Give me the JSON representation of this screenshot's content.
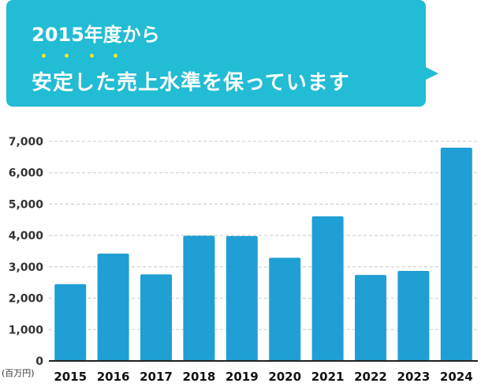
{
  "headline": {
    "line1": "2015年度から",
    "line2": "安定した売上水準を保っています",
    "emphasis_dot_color": "#f2e533",
    "bubble_color": "#22bcd4"
  },
  "chart_data": {
    "type": "bar",
    "categories": [
      "2015",
      "2016",
      "2017",
      "2018",
      "2019",
      "2020",
      "2021",
      "2022",
      "2023",
      "2024"
    ],
    "values": [
      2450,
      3420,
      2760,
      3990,
      3980,
      3290,
      4610,
      2740,
      2870,
      6800
    ],
    "ylim": [
      0,
      7000
    ],
    "yticks": [
      {
        "v": 0,
        "label": "0"
      },
      {
        "v": 1000,
        "label": "1,000"
      },
      {
        "v": 2000,
        "label": "2,000"
      },
      {
        "v": 3000,
        "label": "3,000"
      },
      {
        "v": 4000,
        "label": "4,000"
      },
      {
        "v": 5000,
        "label": "5,000"
      },
      {
        "v": 6000,
        "label": "6,000"
      },
      {
        "v": 7000,
        "label": "7,000"
      }
    ],
    "unit": "(百万円)",
    "bar_color": "#1f9fd3",
    "grid": true
  }
}
